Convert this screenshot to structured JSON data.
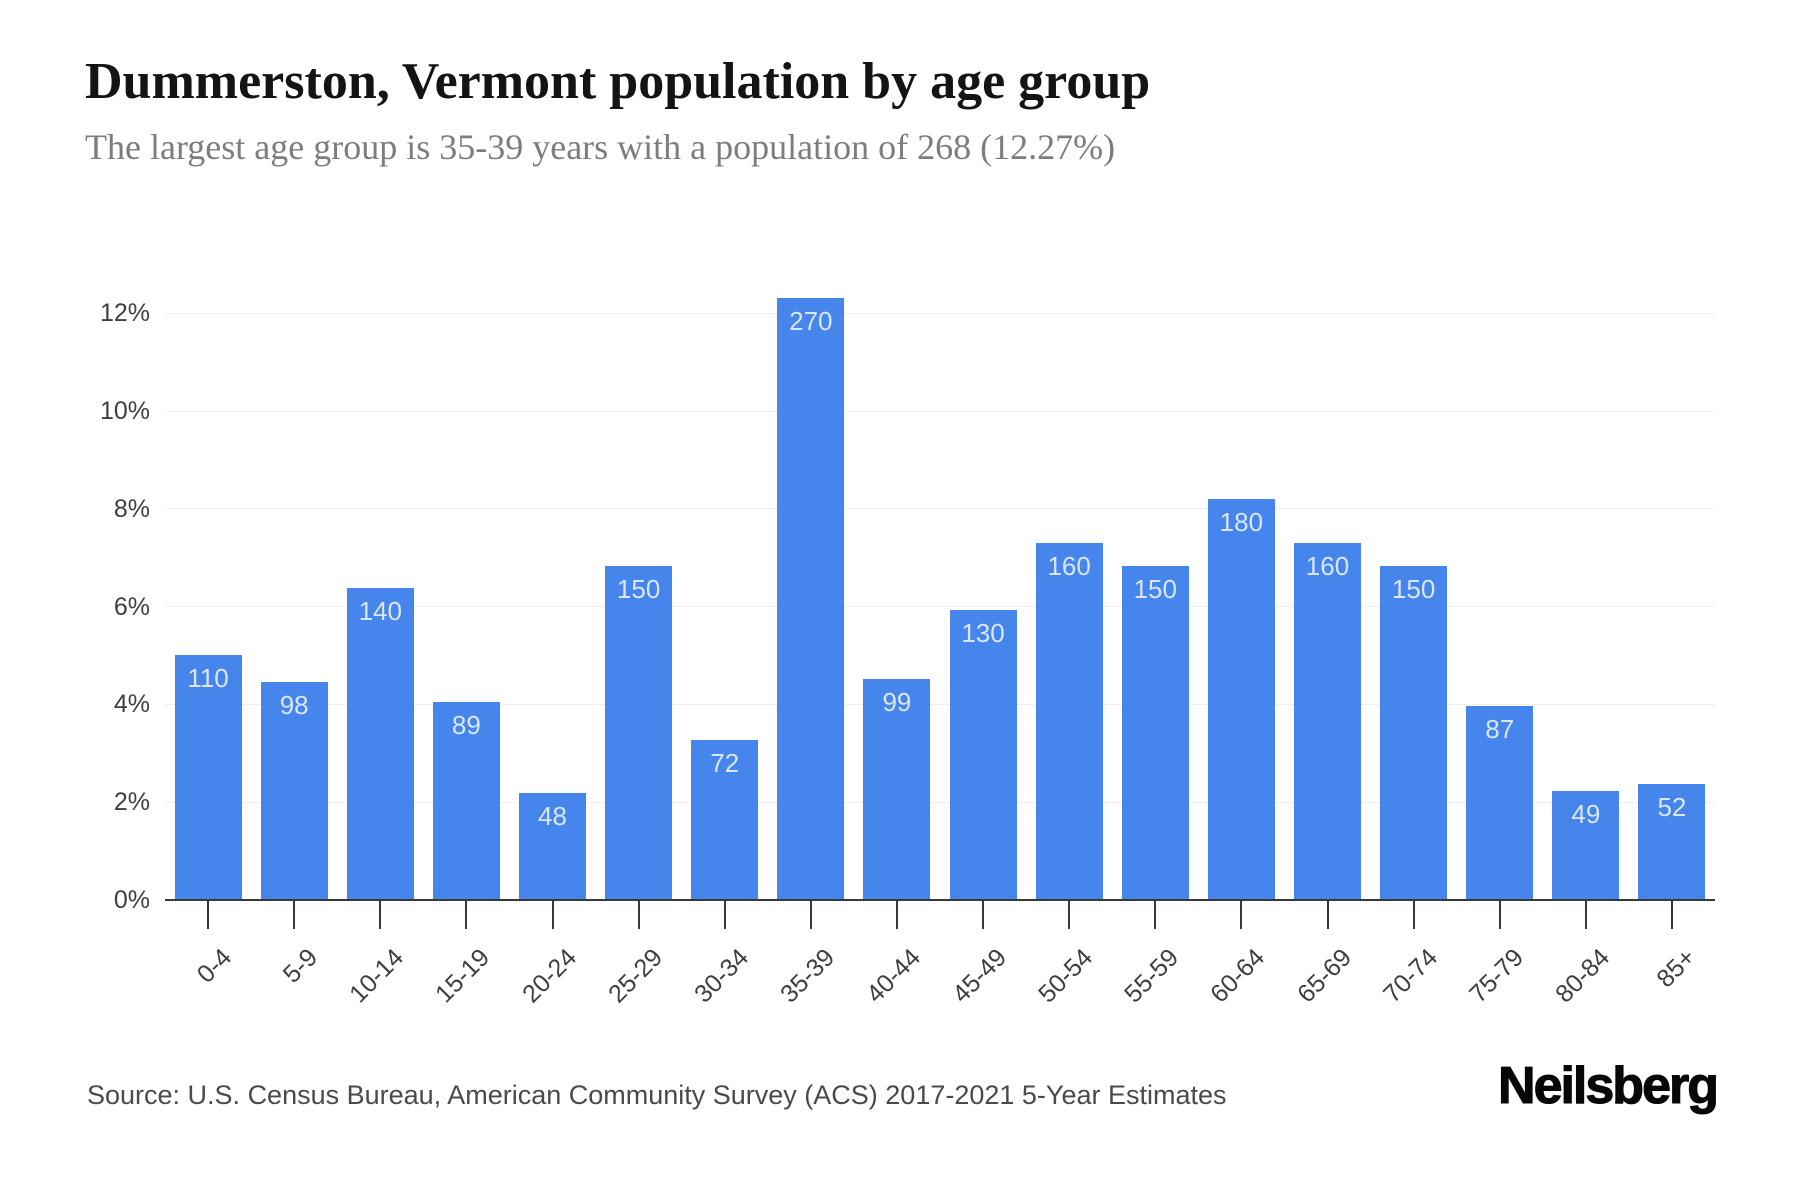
{
  "page": {
    "source": "Source: U.S. Census Bureau, American Community Survey (ACS) 2017-2021 5-Year Estimates",
    "brand": "Neilsberg"
  },
  "chart_data": {
    "type": "bar",
    "title": "Dummerston, Vermont population by age group",
    "subtitle": "The largest age group is 35-39 years with a population of 268 (12.27%)",
    "categories": [
      "0-4",
      "5-9",
      "10-14",
      "15-19",
      "20-24",
      "25-29",
      "30-34",
      "35-39",
      "40-44",
      "45-49",
      "50-54",
      "55-59",
      "60-64",
      "65-69",
      "70-74",
      "75-79",
      "80-84",
      "85+"
    ],
    "values": [
      110,
      98,
      140,
      89,
      48,
      150,
      72,
      270,
      99,
      130,
      160,
      150,
      180,
      160,
      150,
      87,
      49,
      52
    ],
    "bar_labels": [
      "110",
      "98",
      "140",
      "89",
      "48",
      "150",
      "72",
      "270",
      "99",
      "130",
      "160",
      "150",
      "180",
      "160",
      "150",
      "87",
      "49",
      "52"
    ],
    "xlabel": "",
    "ylabel": "",
    "y_tick_labels": [
      "0%",
      "2%",
      "4%",
      "6%",
      "8%",
      "10%",
      "12%"
    ],
    "y_tick_step_pct": 2,
    "ylim_pct": [
      0,
      13.4
    ],
    "grid": "horizontal",
    "legend_position": "none",
    "colors": {
      "bar": "#4685ec",
      "bar_label": "#d9e6fb",
      "gridline": "#efefef",
      "axis": "#383838",
      "tick_label": "#3f3f3f",
      "title": "#141414",
      "subtitle": "#7d7d7d",
      "source": "#4a4a4a",
      "brand": "#070707",
      "background": "#ffffff"
    }
  }
}
